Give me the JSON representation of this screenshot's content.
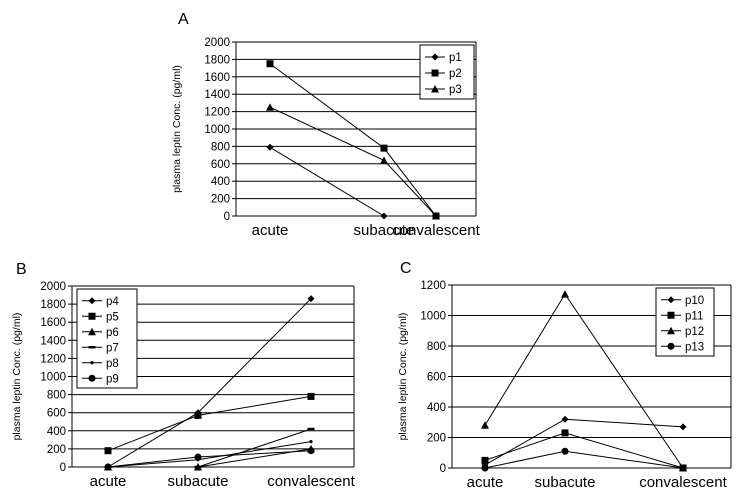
{
  "chart_data": [
    {
      "type": "line",
      "panel_label": "A",
      "ylabel": "plasma leptin Conc. (pg/ml)",
      "categories": [
        "acute",
        "subacute",
        "convalescent"
      ],
      "ylim": [
        0,
        2000
      ],
      "yticks": [
        0,
        200,
        400,
        600,
        800,
        1000,
        1200,
        1400,
        1600,
        1800,
        2000
      ],
      "grid": true,
      "legend_position": "top-right",
      "series": [
        {
          "name": "p1",
          "marker": "diamond",
          "values": [
            790,
            0,
            0
          ]
        },
        {
          "name": "p2",
          "marker": "square",
          "values": [
            1750,
            780,
            0
          ]
        },
        {
          "name": "p3",
          "marker": "triangle",
          "values": [
            1250,
            640,
            0
          ]
        }
      ]
    },
    {
      "type": "line",
      "panel_label": "B",
      "ylabel": "plasma leptin Conc. (pg/ml)",
      "categories": [
        "acute",
        "subacute",
        "convalescent"
      ],
      "ylim": [
        0,
        2000
      ],
      "yticks": [
        0,
        200,
        400,
        600,
        800,
        1000,
        1200,
        1400,
        1600,
        1800,
        2000
      ],
      "grid": true,
      "legend_position": "top-left",
      "series": [
        {
          "name": "p4",
          "marker": "diamond",
          "values": [
            0,
            600,
            1860
          ]
        },
        {
          "name": "p5",
          "marker": "square",
          "values": [
            180,
            570,
            780
          ]
        },
        {
          "name": "p6",
          "marker": "triangle",
          "values": [
            0,
            0,
            200
          ]
        },
        {
          "name": "p7",
          "marker": "dash",
          "values": [
            0,
            0,
            420
          ]
        },
        {
          "name": "p8",
          "marker": "dot",
          "values": [
            0,
            80,
            280
          ]
        },
        {
          "name": "p9",
          "marker": "circle",
          "values": [
            0,
            110,
            180
          ]
        }
      ]
    },
    {
      "type": "line",
      "panel_label": "C",
      "ylabel": "plasma leptin Conc. (pg/ml)",
      "categories": [
        "acute",
        "subacute",
        "convalescent"
      ],
      "ylim": [
        0,
        1200
      ],
      "yticks": [
        0,
        200,
        400,
        600,
        800,
        1000,
        1200
      ],
      "grid": true,
      "legend_position": "top-right",
      "series": [
        {
          "name": "p10",
          "marker": "diamond",
          "values": [
            20,
            320,
            270
          ]
        },
        {
          "name": "p11",
          "marker": "square",
          "values": [
            50,
            230,
            0
          ]
        },
        {
          "name": "p12",
          "marker": "triangle",
          "values": [
            280,
            1140,
            0
          ]
        },
        {
          "name": "p13",
          "marker": "circle",
          "values": [
            0,
            110,
            0
          ]
        }
      ]
    }
  ]
}
